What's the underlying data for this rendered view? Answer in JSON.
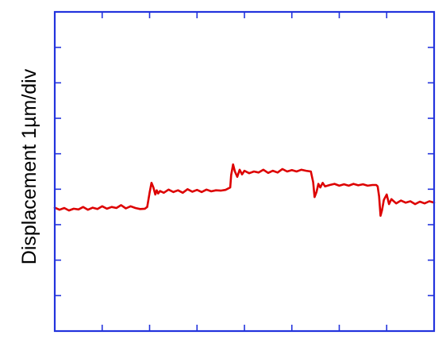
{
  "chart_data": {
    "type": "line",
    "title": "",
    "xlabel": "",
    "ylabel": "Displacement 1µm/div",
    "ylim": [
      0,
      9
    ],
    "yticks": [
      1,
      2,
      3,
      4,
      5,
      6,
      7,
      8
    ],
    "xlim": [
      0,
      8
    ],
    "xticks": [
      1,
      2,
      3,
      4,
      5,
      6,
      7
    ],
    "grid": false,
    "legend": "none",
    "tick_labels_shown": false,
    "frame_color": "#2233dd",
    "line_color": "#dd0000",
    "series": [
      {
        "x": [
          0.0,
          0.1,
          0.2,
          0.3,
          0.4,
          0.5,
          0.6,
          0.7,
          0.8,
          0.9,
          1.0,
          1.1,
          1.2,
          1.3,
          1.4,
          1.5,
          1.6,
          1.7,
          1.8,
          1.9,
          1.95,
          2.0,
          2.04,
          2.08,
          2.12,
          2.15,
          2.18,
          2.22,
          2.3,
          2.4,
          2.5,
          2.6,
          2.7,
          2.8,
          2.9,
          3.0,
          3.1,
          3.2,
          3.3,
          3.4,
          3.5,
          3.6,
          3.7,
          3.72,
          3.76,
          3.8,
          3.85,
          3.9,
          3.95,
          4.0,
          4.1,
          4.2,
          4.3,
          4.4,
          4.5,
          4.6,
          4.7,
          4.8,
          4.9,
          5.0,
          5.1,
          5.2,
          5.3,
          5.4,
          5.45,
          5.48,
          5.52,
          5.56,
          5.6,
          5.65,
          5.7,
          5.8,
          5.9,
          6.0,
          6.1,
          6.2,
          6.3,
          6.4,
          6.5,
          6.6,
          6.7,
          6.78,
          6.81,
          6.84,
          6.87,
          6.9,
          6.94,
          7.0,
          7.05,
          7.1,
          7.2,
          7.3,
          7.4,
          7.5,
          7.6,
          7.7,
          7.8,
          7.9,
          8.0
        ],
        "y": [
          3.48,
          3.42,
          3.47,
          3.4,
          3.45,
          3.43,
          3.5,
          3.42,
          3.48,
          3.44,
          3.52,
          3.45,
          3.5,
          3.47,
          3.55,
          3.46,
          3.52,
          3.47,
          3.44,
          3.45,
          3.5,
          3.9,
          4.18,
          4.05,
          3.85,
          3.97,
          3.88,
          3.95,
          3.9,
          3.99,
          3.92,
          3.97,
          3.9,
          4.0,
          3.93,
          3.98,
          3.92,
          3.99,
          3.94,
          3.97,
          3.96,
          3.98,
          4.05,
          4.4,
          4.7,
          4.5,
          4.35,
          4.55,
          4.42,
          4.52,
          4.45,
          4.5,
          4.47,
          4.55,
          4.46,
          4.52,
          4.47,
          4.57,
          4.5,
          4.54,
          4.5,
          4.55,
          4.52,
          4.5,
          4.2,
          3.78,
          3.92,
          4.15,
          4.05,
          4.18,
          4.08,
          4.12,
          4.15,
          4.1,
          4.14,
          4.1,
          4.15,
          4.11,
          4.14,
          4.1,
          4.12,
          4.12,
          4.08,
          3.8,
          3.25,
          3.4,
          3.7,
          3.85,
          3.58,
          3.72,
          3.6,
          3.68,
          3.62,
          3.66,
          3.58,
          3.65,
          3.6,
          3.66,
          3.62
        ]
      }
    ]
  }
}
